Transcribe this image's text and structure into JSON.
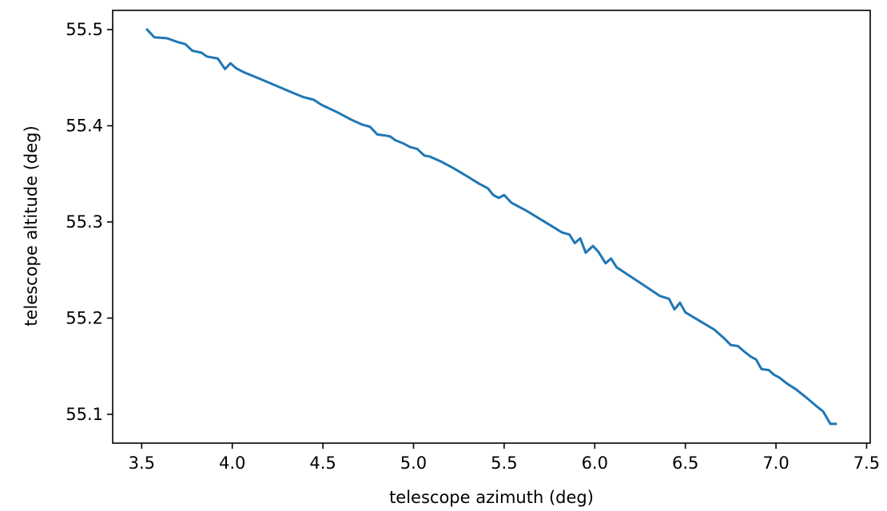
{
  "chart_data": {
    "type": "line",
    "title": "",
    "xlabel": "telescope azimuth (deg)",
    "ylabel": "telescope altitude (deg)",
    "xlim": [
      3.34,
      7.52
    ],
    "ylim": [
      55.07,
      55.52
    ],
    "xticks": [
      3.5,
      4.0,
      4.5,
      5.0,
      5.5,
      6.0,
      6.5,
      7.0,
      7.5
    ],
    "xtick_labels": [
      "3.5",
      "4.0",
      "4.5",
      "5.0",
      "5.5",
      "6.0",
      "6.5",
      "7.0",
      "7.5"
    ],
    "yticks": [
      55.1,
      55.2,
      55.3,
      55.4,
      55.5
    ],
    "ytick_labels": [
      "55.1",
      "55.2",
      "55.3",
      "55.4",
      "55.5"
    ],
    "grid": false,
    "series": [
      {
        "name": "",
        "color": "#1f77b4",
        "x": [
          3.53,
          3.57,
          3.64,
          3.7,
          3.74,
          3.78,
          3.83,
          3.86,
          3.92,
          3.96,
          3.99,
          4.02,
          4.06,
          4.15,
          4.25,
          4.35,
          4.39,
          4.45,
          4.49,
          4.58,
          4.66,
          4.72,
          4.76,
          4.8,
          4.84,
          4.87,
          4.9,
          4.94,
          4.98,
          5.02,
          5.06,
          5.09,
          5.15,
          5.22,
          5.3,
          5.36,
          5.41,
          5.44,
          5.47,
          5.5,
          5.54,
          5.62,
          5.69,
          5.76,
          5.82,
          5.86,
          5.89,
          5.92,
          5.95,
          5.99,
          6.02,
          6.06,
          6.09,
          6.12,
          6.2,
          6.28,
          6.36,
          6.41,
          6.44,
          6.47,
          6.5,
          6.58,
          6.66,
          6.72,
          6.75,
          6.79,
          6.82,
          6.86,
          6.89,
          6.92,
          6.96,
          6.99,
          7.02,
          7.06,
          7.11,
          7.17,
          7.22,
          7.26,
          7.3,
          7.33
        ],
        "y": [
          55.5,
          55.492,
          55.491,
          55.487,
          55.485,
          55.478,
          55.476,
          55.472,
          55.47,
          55.459,
          55.465,
          55.46,
          55.456,
          55.449,
          55.441,
          55.433,
          55.43,
          55.427,
          55.422,
          55.414,
          55.406,
          55.401,
          55.399,
          55.391,
          55.39,
          55.389,
          55.385,
          55.382,
          55.378,
          55.376,
          55.369,
          55.368,
          55.363,
          55.356,
          55.347,
          55.34,
          55.335,
          55.328,
          55.325,
          55.328,
          55.32,
          55.312,
          55.304,
          55.296,
          55.289,
          55.287,
          55.278,
          55.283,
          55.268,
          55.275,
          55.269,
          55.257,
          55.262,
          55.253,
          55.243,
          55.233,
          55.223,
          55.22,
          55.209,
          55.216,
          55.206,
          55.197,
          55.188,
          55.178,
          55.172,
          55.171,
          55.166,
          55.16,
          55.157,
          55.147,
          55.146,
          55.141,
          55.138,
          55.132,
          55.126,
          55.117,
          55.109,
          55.103,
          55.09,
          55.09
        ]
      }
    ]
  }
}
